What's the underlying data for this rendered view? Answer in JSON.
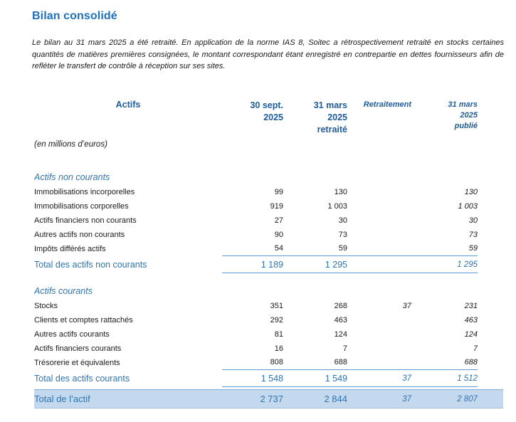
{
  "page": {
    "title": "Bilan consolidé"
  },
  "intro": "Le bilan au 31 mars 2025 a été retraité. En application de la norme IAS 8, Soitec a rétrospectivement retraité en stocks certaines quantités de matières premières consignées, le montant correspondant étant enregistré en contrepartie en dettes fournisseurs afin de refléter le transfert de contrôle à réception sur ses sites.",
  "table": {
    "header": {
      "label": "Actifs",
      "col1": "30 sept.\n2025",
      "col2": "31 mars\n2025\nretraité",
      "col3": "Retraitement",
      "col4": "31 mars\n2025\npublié"
    },
    "unit_note": "(en millions d’euros)",
    "sections": [
      {
        "name": "Actifs non courants",
        "rows": [
          {
            "label": "Immobilisations incorporelles",
            "v1": "99",
            "v2": "130",
            "v3": "",
            "v4": "130"
          },
          {
            "label": "Immobilisations corporelles",
            "v1": "919",
            "v2": "1 003",
            "v3": "",
            "v4": "1 003"
          },
          {
            "label": "Actifs financiers non courants",
            "v1": "27",
            "v2": "30",
            "v3": "",
            "v4": "30"
          },
          {
            "label": "Autres actifs non courants",
            "v1": "90",
            "v2": "73",
            "v3": "",
            "v4": "73"
          },
          {
            "label": "Impôts différés actifs",
            "v1": "54",
            "v2": "59",
            "v3": "",
            "v4": "59"
          }
        ],
        "total": {
          "label": "Total des actifs non courants",
          "v1": "1 189",
          "v2": "1 295",
          "v3": "",
          "v4": "1 295"
        }
      },
      {
        "name": "Actifs courants",
        "rows": [
          {
            "label": "Stocks",
            "v1": "351",
            "v2": "268",
            "v3": "37",
            "v4": "231"
          },
          {
            "label": "Clients et comptes rattachés",
            "v1": "292",
            "v2": "463",
            "v3": "",
            "v4": "463"
          },
          {
            "label": "Autres actifs courants",
            "v1": "81",
            "v2": "124",
            "v3": "",
            "v4": "124"
          },
          {
            "label": "Actifs financiers courants",
            "v1": "16",
            "v2": "7",
            "v3": "",
            "v4": "7"
          },
          {
            "label": "Trésorerie et équivalents",
            "v1": "808",
            "v2": "688",
            "v3": "",
            "v4": "688"
          }
        ],
        "total": {
          "label": "Total des actifs courants",
          "v1": "1 548",
          "v2": "1 549",
          "v3": "37",
          "v4": "1 512"
        }
      }
    ],
    "grand_total": {
      "label": "Total de l’actif",
      "v1": "2 737",
      "v2": "2 844",
      "v3": "37",
      "v4": "2 807"
    }
  },
  "colors": {
    "title_blue": "#1D70BE",
    "header_blue": "#1F5C9B",
    "accent_blue": "#2E75B6",
    "line_blue": "#5B9BD5",
    "highlight_bg": "#C5D9EE"
  }
}
